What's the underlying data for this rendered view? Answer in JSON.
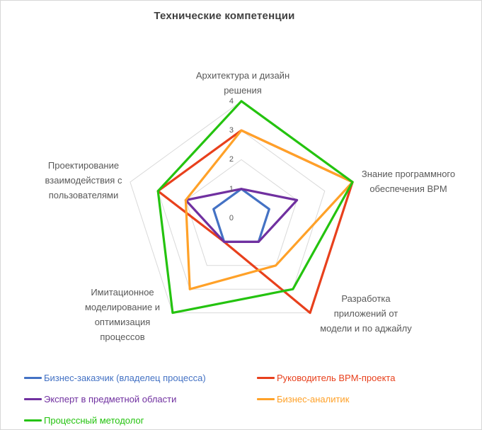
{
  "title": "Технические компетенции",
  "chart_data": {
    "type": "radar",
    "title": "Технические компетенции",
    "axis_range": [
      0,
      4
    ],
    "ticks": [
      "0",
      "1",
      "2",
      "3",
      "4"
    ],
    "grid": true,
    "grid_color": "#d9d9d9",
    "label_color": "#595959",
    "title_color": "#404040",
    "legend_position": "bottom-left",
    "categories": [
      "Архитектура и дизайн\nрешения",
      "Знание программного\nобеспечения BPM",
      "Разработка\nприложений от\nмодели и по аджайлу",
      "Имитационное\nмоделирование и\nоптимизация\nпроцессов",
      "Проектирование\nвзаимодействия с\nпользователями"
    ],
    "series": [
      {
        "name": "Бизнес-заказчик (владелец процесса)",
        "color": "#4472c4",
        "values": [
          1,
          1,
          1,
          1,
          1
        ]
      },
      {
        "name": "Руководитель BPM-проекта",
        "color": "#e8401c",
        "values": [
          3,
          4,
          4,
          1,
          3
        ]
      },
      {
        "name": "Эксперт в предметной области",
        "color": "#7030a0",
        "values": [
          1,
          2,
          1,
          1,
          2
        ]
      },
      {
        "name": "Бизнес-аналитик",
        "color": "#ffa128",
        "values": [
          3,
          4,
          2,
          3,
          2
        ]
      },
      {
        "name": "Процессный методолог",
        "color": "#24c30f",
        "values": [
          4,
          4,
          3,
          4,
          3
        ]
      }
    ]
  }
}
